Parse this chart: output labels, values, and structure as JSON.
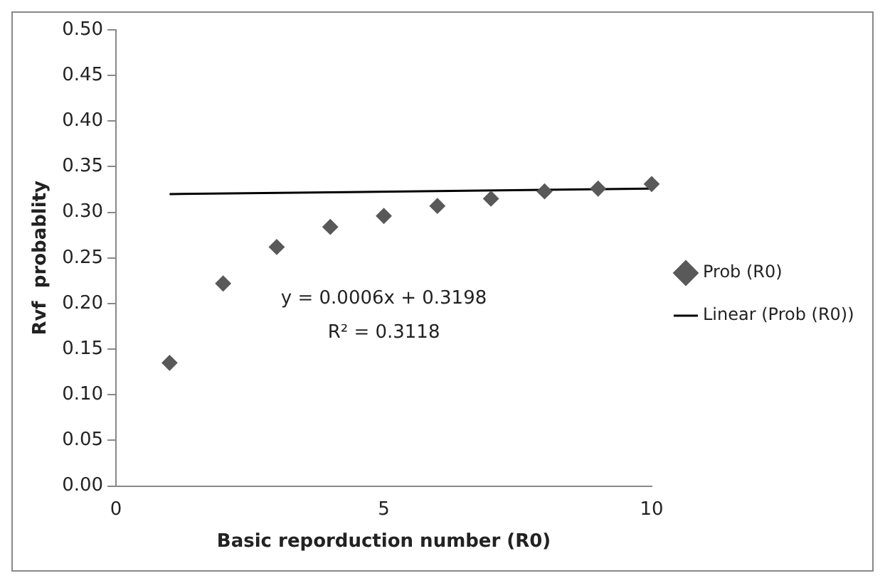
{
  "chart_data": {
    "type": "scatter",
    "xlabel": "Basic reporduction number (R0)",
    "ylabel": "Rvf  probablity",
    "x": [
      1,
      2,
      3,
      4,
      5,
      6,
      7,
      8,
      9,
      10
    ],
    "series": [
      {
        "name": "Prob (R0)",
        "type": "scatter",
        "color": "#595959",
        "marker": "diamond",
        "values": [
          0.135,
          0.222,
          0.262,
          0.284,
          0.296,
          0.307,
          0.315,
          0.323,
          0.326,
          0.331
        ]
      },
      {
        "name": "Linear (Prob (R0))",
        "type": "line",
        "color": "#000000",
        "marker": "none",
        "x": [
          1,
          10
        ],
        "values": [
          0.32,
          0.326
        ]
      }
    ],
    "annotations": [
      "y = 0.0006x + 0.3198",
      "R² = 0.3118"
    ],
    "xlim": [
      0,
      10
    ],
    "xticks": [
      0,
      5,
      10
    ],
    "ylim": [
      0,
      0.5
    ],
    "yticks": [
      {
        "value": 0,
        "label": "0.00"
      },
      {
        "value": 0.05,
        "label": "0.05"
      },
      {
        "value": 0.1,
        "label": "0.10"
      },
      {
        "value": 0.15,
        "label": "0.15"
      },
      {
        "value": 0.2,
        "label": "0.20"
      },
      {
        "value": 0.25,
        "label": "0.25"
      },
      {
        "value": 0.3,
        "label": "0.30"
      },
      {
        "value": 0.35,
        "label": "0.35"
      },
      {
        "value": 0.4,
        "label": "0.40"
      },
      {
        "value": 0.45,
        "label": "0.45"
      },
      {
        "value": 0.5,
        "label": "0.50"
      }
    ],
    "grid": false,
    "legend": "right"
  }
}
